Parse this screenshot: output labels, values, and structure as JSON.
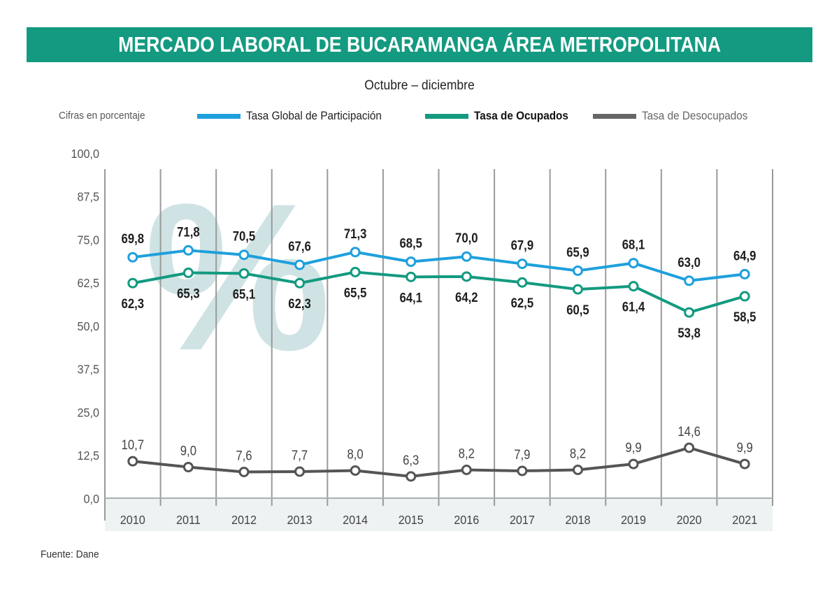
{
  "header": {
    "title": "MERCADO LABORAL DE BUCARAMANGA ÁREA METROPOLITANA",
    "subtitle": "Octubre – diciembre",
    "units_note": "Cifras en porcentaje"
  },
  "footer": {
    "source": "Fuente: Dane"
  },
  "colors": {
    "banner": "#139a80",
    "tgp": "#1ea0dc",
    "to": "#139a80",
    "td": "#555555",
    "watermark": "#cfe3e4",
    "axis_band": "#eef2f3",
    "grid": "#9a9a9a"
  },
  "watermark": {
    "symbol": "%"
  },
  "chart_data": {
    "type": "line",
    "title": "MERCADO LABORAL DE BUCARAMANGA ÁREA METROPOLITANA",
    "subtitle": "Octubre – diciembre",
    "xlabel": "",
    "ylabel": "Cifras en porcentaje",
    "ylim": [
      0,
      100
    ],
    "y_ticks": [
      "0,0",
      "12,5",
      "25,0",
      "37,5",
      "50,0",
      "62,5",
      "75,0",
      "87,5",
      "100,0"
    ],
    "y_tick_values": [
      0,
      12.5,
      25,
      37.5,
      50,
      62.5,
      75,
      87.5,
      100
    ],
    "grid": "vertical",
    "legend_position": "top",
    "categories": [
      "2010",
      "2011",
      "2012",
      "2013",
      "2014",
      "2015",
      "2016",
      "2017",
      "2018",
      "2019",
      "2020",
      "2021"
    ],
    "series": [
      {
        "key": "tgp",
        "name": "Tasa Global de Participación",
        "values": [
          69.8,
          71.8,
          70.5,
          67.6,
          71.3,
          68.5,
          70.0,
          67.9,
          65.9,
          68.1,
          63.0,
          64.9
        ],
        "labels": [
          "69,8",
          "71,8",
          "70,5",
          "67,6",
          "71,3",
          "68,5",
          "70,0",
          "67,9",
          "65,9",
          "68,1",
          "63,0",
          "64,9"
        ],
        "label_position": "above"
      },
      {
        "key": "to",
        "name": "Tasa de Ocupados",
        "values": [
          62.3,
          65.3,
          65.1,
          62.3,
          65.5,
          64.1,
          64.2,
          62.5,
          60.5,
          61.4,
          53.8,
          58.5
        ],
        "labels": [
          "62,3",
          "65,3",
          "65,1",
          "62,3",
          "65,5",
          "64,1",
          "64,2",
          "62,5",
          "60,5",
          "61,4",
          "53,8",
          "58,5"
        ],
        "label_position": "below"
      },
      {
        "key": "td",
        "name": "Tasa de Desocupados",
        "values": [
          10.7,
          9.0,
          7.6,
          7.7,
          8.0,
          6.3,
          8.2,
          7.9,
          8.2,
          9.9,
          14.6,
          9.9
        ],
        "labels": [
          "10,7",
          "9,0",
          "7,6",
          "7,7",
          "8,0",
          "6,3",
          "8,2",
          "7,9",
          "8,2",
          "9,9",
          "14,6",
          "9,9"
        ],
        "label_position": "above"
      }
    ]
  }
}
